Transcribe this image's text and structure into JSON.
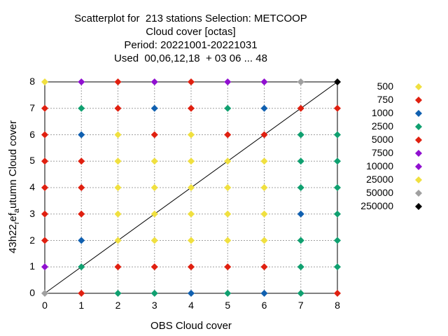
{
  "chart_data": {
    "type": "scatter",
    "title_lines": [
      "Scatterplot for  213 stations Selection: METCOOP",
      "Cloud cover [octas]",
      "Period: 20221001-20221031",
      "Used  00,06,12,18  + 03 06 ... 48"
    ],
    "xlabel": "OBS Cloud cover",
    "ylabel_parts": {
      "main": "43h22",
      "sub1": "r",
      "mid": "ef",
      "sub2": "a",
      "tail": "utumn Cloud cover"
    },
    "xlim": [
      0,
      8
    ],
    "ylim": [
      0,
      8
    ],
    "xticks": [
      "0",
      "1",
      "2",
      "3",
      "4",
      "5",
      "6",
      "7",
      "8"
    ],
    "yticks": [
      "0",
      "1",
      "2",
      "3",
      "4",
      "5",
      "6",
      "7",
      "8"
    ],
    "grid": true,
    "diagonal": true,
    "legend_position": "right",
    "classes": [
      {
        "label": "500",
        "color": "#f0e040"
      },
      {
        "label": "750",
        "color": "#e02010"
      },
      {
        "label": "1000",
        "color": "#1060b0"
      },
      {
        "label": "2500",
        "color": "#10a070"
      },
      {
        "label": "5000",
        "color": "#e02010"
      },
      {
        "label": "7500",
        "color": "#9010d0"
      },
      {
        "label": "10000",
        "color": "#9010d0"
      },
      {
        "label": "25000",
        "color": "#f0e040"
      },
      {
        "label": "50000",
        "color": "#a0a0a0"
      },
      {
        "label": "250000",
        "color": "#000000"
      }
    ],
    "points": [
      {
        "x": 0,
        "y": 0,
        "c": 8
      },
      {
        "x": 0,
        "y": 1,
        "c": 5
      },
      {
        "x": 0,
        "y": 2,
        "c": 1
      },
      {
        "x": 0,
        "y": 3,
        "c": 1
      },
      {
        "x": 0,
        "y": 4,
        "c": 1
      },
      {
        "x": 0,
        "y": 5,
        "c": 1
      },
      {
        "x": 0,
        "y": 6,
        "c": 1
      },
      {
        "x": 0,
        "y": 7,
        "c": 1
      },
      {
        "x": 0,
        "y": 8,
        "c": 0
      },
      {
        "x": 1,
        "y": 0,
        "c": 1
      },
      {
        "x": 1,
        "y": 1,
        "c": 3
      },
      {
        "x": 1,
        "y": 2,
        "c": 2
      },
      {
        "x": 1,
        "y": 3,
        "c": 1
      },
      {
        "x": 1,
        "y": 4,
        "c": 1
      },
      {
        "x": 1,
        "y": 5,
        "c": 1
      },
      {
        "x": 1,
        "y": 6,
        "c": 2
      },
      {
        "x": 1,
        "y": 7,
        "c": 3
      },
      {
        "x": 1,
        "y": 8,
        "c": 5
      },
      {
        "x": 2,
        "y": 0,
        "c": 3
      },
      {
        "x": 2,
        "y": 1,
        "c": 1
      },
      {
        "x": 2,
        "y": 2,
        "c": 0
      },
      {
        "x": 2,
        "y": 3,
        "c": 0
      },
      {
        "x": 2,
        "y": 4,
        "c": 0
      },
      {
        "x": 2,
        "y": 5,
        "c": 0
      },
      {
        "x": 2,
        "y": 6,
        "c": 0
      },
      {
        "x": 2,
        "y": 7,
        "c": 1
      },
      {
        "x": 2,
        "y": 8,
        "c": 1
      },
      {
        "x": 3,
        "y": 0,
        "c": 3
      },
      {
        "x": 3,
        "y": 1,
        "c": 1
      },
      {
        "x": 3,
        "y": 2,
        "c": 0
      },
      {
        "x": 3,
        "y": 3,
        "c": 0
      },
      {
        "x": 3,
        "y": 4,
        "c": 0
      },
      {
        "x": 3,
        "y": 5,
        "c": 0
      },
      {
        "x": 3,
        "y": 6,
        "c": 1
      },
      {
        "x": 3,
        "y": 7,
        "c": 2
      },
      {
        "x": 3,
        "y": 8,
        "c": 5
      },
      {
        "x": 4,
        "y": 0,
        "c": 2
      },
      {
        "x": 4,
        "y": 1,
        "c": 1
      },
      {
        "x": 4,
        "y": 2,
        "c": 0
      },
      {
        "x": 4,
        "y": 3,
        "c": 0
      },
      {
        "x": 4,
        "y": 4,
        "c": 0
      },
      {
        "x": 4,
        "y": 5,
        "c": 0
      },
      {
        "x": 4,
        "y": 6,
        "c": 0
      },
      {
        "x": 4,
        "y": 7,
        "c": 1
      },
      {
        "x": 4,
        "y": 8,
        "c": 1
      },
      {
        "x": 5,
        "y": 0,
        "c": 3
      },
      {
        "x": 5,
        "y": 1,
        "c": 1
      },
      {
        "x": 5,
        "y": 2,
        "c": 0
      },
      {
        "x": 5,
        "y": 3,
        "c": 0
      },
      {
        "x": 5,
        "y": 4,
        "c": 0
      },
      {
        "x": 5,
        "y": 5,
        "c": 0
      },
      {
        "x": 5,
        "y": 6,
        "c": 1
      },
      {
        "x": 5,
        "y": 7,
        "c": 3
      },
      {
        "x": 5,
        "y": 8,
        "c": 5
      },
      {
        "x": 6,
        "y": 0,
        "c": 2
      },
      {
        "x": 6,
        "y": 1,
        "c": 1
      },
      {
        "x": 6,
        "y": 2,
        "c": 0
      },
      {
        "x": 6,
        "y": 3,
        "c": 0
      },
      {
        "x": 6,
        "y": 4,
        "c": 0
      },
      {
        "x": 6,
        "y": 5,
        "c": 0
      },
      {
        "x": 6,
        "y": 6,
        "c": 1
      },
      {
        "x": 6,
        "y": 7,
        "c": 2
      },
      {
        "x": 6,
        "y": 8,
        "c": 5
      },
      {
        "x": 7,
        "y": 0,
        "c": 3
      },
      {
        "x": 7,
        "y": 1,
        "c": 3
      },
      {
        "x": 7,
        "y": 2,
        "c": 3
      },
      {
        "x": 7,
        "y": 3,
        "c": 2
      },
      {
        "x": 7,
        "y": 4,
        "c": 3
      },
      {
        "x": 7,
        "y": 5,
        "c": 3
      },
      {
        "x": 7,
        "y": 6,
        "c": 3
      },
      {
        "x": 7,
        "y": 7,
        "c": 1
      },
      {
        "x": 7,
        "y": 8,
        "c": 8
      },
      {
        "x": 8,
        "y": 0,
        "c": 1
      },
      {
        "x": 8,
        "y": 1,
        "c": 3
      },
      {
        "x": 8,
        "y": 2,
        "c": 3
      },
      {
        "x": 8,
        "y": 3,
        "c": 3
      },
      {
        "x": 8,
        "y": 4,
        "c": 3
      },
      {
        "x": 8,
        "y": 5,
        "c": 3
      },
      {
        "x": 8,
        "y": 6,
        "c": 3
      },
      {
        "x": 8,
        "y": 7,
        "c": 1
      },
      {
        "x": 8,
        "y": 8,
        "c": 9
      }
    ]
  }
}
